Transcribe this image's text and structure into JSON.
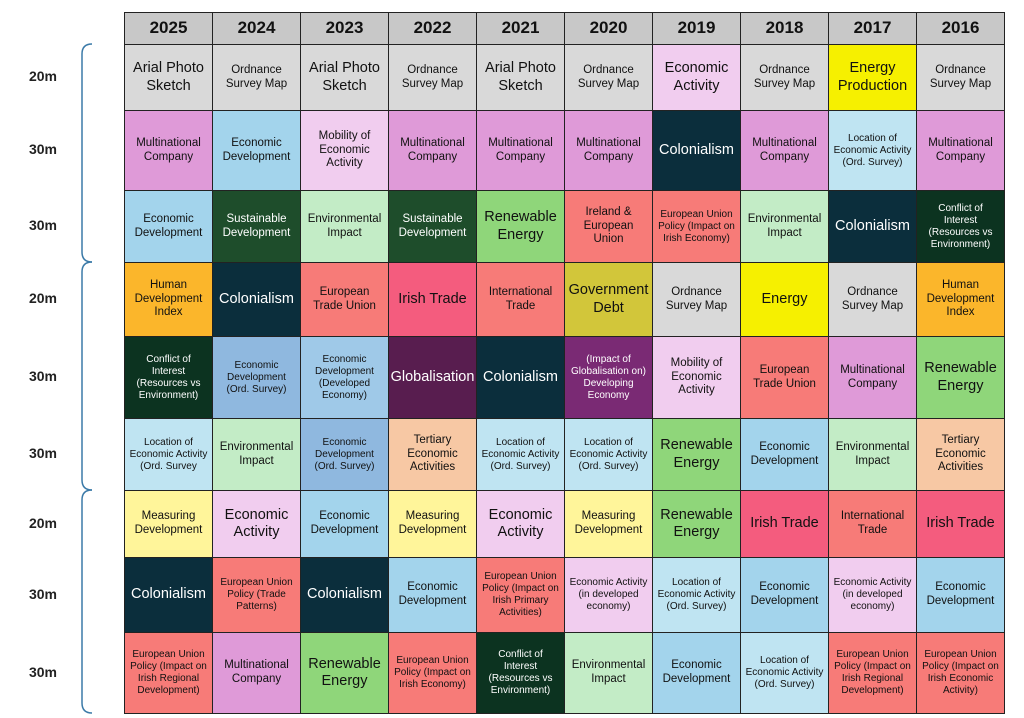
{
  "header": {
    "years": [
      "2025",
      "2024",
      "2023",
      "2022",
      "2021",
      "2020",
      "2019",
      "2018",
      "2017",
      "2016"
    ]
  },
  "rows": [
    {
      "label": "20m",
      "cells": [
        {
          "text": "Arial Photo Sketch",
          "color": "#d9d9d9"
        },
        {
          "text": "Ordnance Survey Map",
          "color": "#d9d9d9"
        },
        {
          "text": "Arial Photo Sketch",
          "color": "#d9d9d9"
        },
        {
          "text": "Ordnance Survey Map",
          "color": "#d9d9d9"
        },
        {
          "text": "Arial Photo Sketch",
          "color": "#d9d9d9"
        },
        {
          "text": "Ordnance Survey Map",
          "color": "#d9d9d9"
        },
        {
          "text": "Economic Activity",
          "color": "#f1cdef"
        },
        {
          "text": "Ordnance Survey Map",
          "color": "#d9d9d9"
        },
        {
          "text": "Energy Production",
          "color": "#f6f000"
        },
        {
          "text": "Ordnance Survey Map",
          "color": "#d9d9d9"
        }
      ]
    },
    {
      "label": "30m",
      "cells": [
        {
          "text": "Multinational Company",
          "color": "#df9ad8"
        },
        {
          "text": "Economic Development",
          "color": "#a3d4ec"
        },
        {
          "text": "Mobility of Economic Activity",
          "color": "#f1cdef"
        },
        {
          "text": "Multinational Company",
          "color": "#df9ad8"
        },
        {
          "text": "Multinational Company",
          "color": "#df9ad8"
        },
        {
          "text": "Multinational Company",
          "color": "#df9ad8"
        },
        {
          "text": "Colonialism",
          "color": "#0b2e3c"
        },
        {
          "text": "Multinational Company",
          "color": "#df9ad8"
        },
        {
          "text": "Location of Economic Activity (Ord. Survey)",
          "color": "#bfe4f2"
        },
        {
          "text": "Multinational Company",
          "color": "#df9ad8"
        }
      ]
    },
    {
      "label": "30m",
      "cells": [
        {
          "text": "Economic Development",
          "color": "#a3d4ec"
        },
        {
          "text": "Sustainable Development",
          "color": "#1e4d2b"
        },
        {
          "text": "Environmental Impact",
          "color": "#c3ecc6"
        },
        {
          "text": "Sustainable Development",
          "color": "#1e4d2b"
        },
        {
          "text": "Renewable Energy",
          "color": "#8fd67a"
        },
        {
          "text": "Ireland & European Union",
          "color": "#f77b78"
        },
        {
          "text": "European Union Policy (Impact on Irish Economy)",
          "color": "#f77b78"
        },
        {
          "text": "Environmental Impact",
          "color": "#c3ecc6"
        },
        {
          "text": "Colonialism",
          "color": "#0b2e3c"
        },
        {
          "text": "Conflict of Interest (Resources vs Environment)",
          "color": "#0c3320"
        }
      ]
    },
    {
      "label": "20m",
      "cells": [
        {
          "text": "Human Development Index",
          "color": "#fbb62b"
        },
        {
          "text": "Colonialism",
          "color": "#0b2e3c"
        },
        {
          "text": "European Trade Union",
          "color": "#f77b78"
        },
        {
          "text": "Irish Trade",
          "color": "#f45c7e"
        },
        {
          "text": "International Trade",
          "color": "#f77b78"
        },
        {
          "text": "Government Debt",
          "color": "#d2c63a"
        },
        {
          "text": "Ordnance Survey Map",
          "color": "#d9d9d9"
        },
        {
          "text": "Energy",
          "color": "#f6f000"
        },
        {
          "text": "Ordnance Survey Map",
          "color": "#d9d9d9"
        },
        {
          "text": "Human Development Index",
          "color": "#fbb62b"
        }
      ]
    },
    {
      "label": "30m",
      "cells": [
        {
          "text": "Conflict of Interest (Resources vs Environment)",
          "color": "#0c3320"
        },
        {
          "text": "Economic Development (Ord. Survey)",
          "color": "#8fb8df"
        },
        {
          "text": "Economic Development (Developed Economy)",
          "color": "#9fc9e8"
        },
        {
          "text": "Globalisation",
          "color": "#581d4f"
        },
        {
          "text": "Colonialism",
          "color": "#0b2e3c"
        },
        {
          "text": "(Impact of Globalisation on) Developing Economy",
          "color": "#7a2a74"
        },
        {
          "text": "Mobility of Economic Activity",
          "color": "#f1cdef"
        },
        {
          "text": "European Trade Union",
          "color": "#f77b78"
        },
        {
          "text": "Multinational Company",
          "color": "#df9ad8"
        },
        {
          "text": "Renewable Energy",
          "color": "#8fd67a"
        }
      ]
    },
    {
      "label": "30m",
      "cells": [
        {
          "text": "Location of Economic Activity (Ord. Survey",
          "color": "#bfe4f2"
        },
        {
          "text": "Environmental Impact",
          "color": "#c3ecc6"
        },
        {
          "text": "Economic Development (Ord. Survey)",
          "color": "#8fb8df"
        },
        {
          "text": "Tertiary Economic Activities",
          "color": "#f7c8a4"
        },
        {
          "text": "Location of Economic Activity (Ord. Survey)",
          "color": "#bfe4f2"
        },
        {
          "text": "Location of Economic Activity (Ord. Survey)",
          "color": "#bfe4f2"
        },
        {
          "text": "Renewable Energy",
          "color": "#8fd67a"
        },
        {
          "text": "Economic Development",
          "color": "#a3d4ec"
        },
        {
          "text": "Environmental Impact",
          "color": "#c3ecc6"
        },
        {
          "text": "Tertiary Economic Activities",
          "color": "#f7c8a4"
        }
      ]
    },
    {
      "label": "20m",
      "cells": [
        {
          "text": "Measuring Development",
          "color": "#fff59a"
        },
        {
          "text": "Economic Activity",
          "color": "#f1cdef"
        },
        {
          "text": "Economic Development",
          "color": "#a3d4ec"
        },
        {
          "text": "Measuring Development",
          "color": "#fff59a"
        },
        {
          "text": "Economic Activity",
          "color": "#f1cdef"
        },
        {
          "text": "Measuring Development",
          "color": "#fff59a"
        },
        {
          "text": "Renewable Energy",
          "color": "#8fd67a"
        },
        {
          "text": "Irish Trade",
          "color": "#f45c7e"
        },
        {
          "text": "International Trade",
          "color": "#f77b78"
        },
        {
          "text": "Irish Trade",
          "color": "#f45c7e"
        }
      ]
    },
    {
      "label": "30m",
      "cells": [
        {
          "text": "Colonialism",
          "color": "#0b2e3c"
        },
        {
          "text": "European Union Policy (Trade Patterns)",
          "color": "#f77b78"
        },
        {
          "text": "Colonialism",
          "color": "#0b2e3c"
        },
        {
          "text": "Economic Development",
          "color": "#a3d4ec"
        },
        {
          "text": "European Union Policy (Impact on Irish Primary Activities)",
          "color": "#f77b78"
        },
        {
          "text": "Economic Activity (in developed economy)",
          "color": "#f1cdef"
        },
        {
          "text": "Location of Economic Activity (Ord. Survey)",
          "color": "#bfe4f2"
        },
        {
          "text": "Economic Development",
          "color": "#a3d4ec"
        },
        {
          "text": "Economic Activity (in developed economy)",
          "color": "#f1cdef"
        },
        {
          "text": "Economic Development",
          "color": "#a3d4ec"
        }
      ]
    },
    {
      "label": "30m",
      "cells": [
        {
          "text": "European Union Policy (Impact on Irish Regional Development)",
          "color": "#f77b78"
        },
        {
          "text": "Multinational Company",
          "color": "#df9ad8"
        },
        {
          "text": "Renewable Energy",
          "color": "#8fd67a"
        },
        {
          "text": "European Union Policy (Impact on Irish Economy)",
          "color": "#f77b78"
        },
        {
          "text": "Conflict of Interest (Resources vs Environment)",
          "color": "#0c3320"
        },
        {
          "text": "Environmental Impact",
          "color": "#c3ecc6"
        },
        {
          "text": "Economic Development",
          "color": "#a3d4ec"
        },
        {
          "text": "Location of Economic Activity (Ord. Survey)",
          "color": "#bfe4f2"
        },
        {
          "text": "European Union Policy (Impact on Irish Regional Development)",
          "color": "#f77b78"
        },
        {
          "text": "European Union Policy (Impact on Irish Economic Activity)",
          "color": "#f77b78"
        }
      ]
    }
  ]
}
